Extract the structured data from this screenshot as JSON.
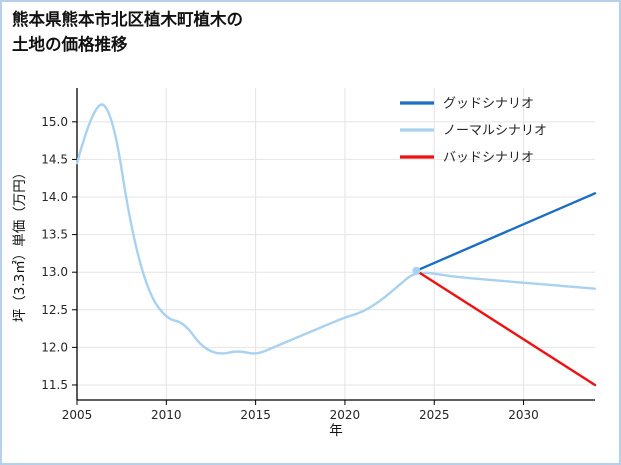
{
  "title_lines": [
    "熊本県熊本市北区植木町植木の",
    "土地の価格推移"
  ],
  "page": {
    "border_color": "#b6d0ea",
    "background": "#ffffff"
  },
  "chart_data": {
    "type": "line",
    "title": "熊本県熊本市北区植木町植木の土地の価格推移",
    "xlabel": "年",
    "ylabel": "坪（3.3㎡）単価（万円）",
    "xlim": [
      2005,
      2034
    ],
    "ylim": [
      11.3,
      15.45
    ],
    "xticks": [
      2005,
      2010,
      2015,
      2020,
      2025,
      2030
    ],
    "yticks": [
      11.5,
      12.0,
      12.5,
      13.0,
      13.5,
      14.0,
      14.5,
      15.0
    ],
    "grid": true,
    "legend_position": "upper right",
    "colors": {
      "grid": "#e4e4e4",
      "axis": "#000000",
      "tick_text": "#262626"
    },
    "marker": {
      "x": 2024,
      "y": 13.02
    },
    "series": [
      {
        "name": "グッドシナリオ",
        "key": "good",
        "color": "#1b6ec2",
        "x": [
          2024,
          2034
        ],
        "y": [
          13.02,
          14.05
        ]
      },
      {
        "name": "ノーマルシナリオ",
        "key": "normal",
        "color": "#a8d2f0",
        "x": [
          2005,
          2006,
          2007,
          2008,
          2009,
          2010,
          2011,
          2012,
          2013,
          2014,
          2015,
          2016,
          2017,
          2018,
          2019,
          2020,
          2021,
          2022,
          2023,
          2024,
          2026,
          2028,
          2030,
          2032,
          2034
        ],
        "y": [
          14.45,
          15.32,
          15.12,
          13.6,
          12.72,
          12.38,
          12.33,
          12.0,
          11.9,
          11.96,
          11.9,
          12.0,
          12.1,
          12.2,
          12.3,
          12.4,
          12.47,
          12.62,
          12.82,
          13.02,
          12.94,
          12.9,
          12.86,
          12.82,
          12.78
        ]
      },
      {
        "name": "バッドシナリオ",
        "key": "bad",
        "color": "#ee1111",
        "x": [
          2024,
          2034
        ],
        "y": [
          13.02,
          11.5
        ]
      }
    ]
  }
}
